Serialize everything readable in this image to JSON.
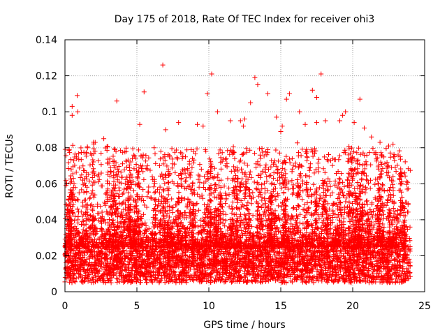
{
  "chart_data": {
    "type": "scatter",
    "title": "Day 175 of 2018, Rate Of TEC Index for receiver ohi3",
    "xlabel": "GPS time / hours",
    "ylabel": "ROTI / TECUs",
    "xlim": [
      0,
      25
    ],
    "ylim": [
      0,
      0.14
    ],
    "x_ticks": [
      "0",
      "5",
      "10",
      "15",
      "20",
      "25"
    ],
    "y_ticks": [
      "0",
      "0.02",
      "0.04",
      "0.06",
      "0.08",
      "0.1",
      "0.12",
      "0.14"
    ],
    "grid": true,
    "marker": "plus",
    "color": "#ff0000",
    "time_range": [
      0,
      24
    ],
    "baseline_range": [
      0.005,
      0.025
    ],
    "notable_points": [
      {
        "x": 0.3,
        "y": 0.079
      },
      {
        "x": 0.5,
        "y": 0.103
      },
      {
        "x": 0.5,
        "y": 0.098
      },
      {
        "x": 0.85,
        "y": 0.109
      },
      {
        "x": 0.9,
        "y": 0.1
      },
      {
        "x": 2.1,
        "y": 0.083
      },
      {
        "x": 2.7,
        "y": 0.085
      },
      {
        "x": 3.6,
        "y": 0.106
      },
      {
        "x": 5.2,
        "y": 0.093
      },
      {
        "x": 5.5,
        "y": 0.111
      },
      {
        "x": 6.8,
        "y": 0.126
      },
      {
        "x": 7.0,
        "y": 0.09
      },
      {
        "x": 7.9,
        "y": 0.094
      },
      {
        "x": 9.2,
        "y": 0.093
      },
      {
        "x": 9.6,
        "y": 0.092
      },
      {
        "x": 9.9,
        "y": 0.11
      },
      {
        "x": 10.2,
        "y": 0.121
      },
      {
        "x": 10.6,
        "y": 0.1
      },
      {
        "x": 11.5,
        "y": 0.095
      },
      {
        "x": 12.2,
        "y": 0.095
      },
      {
        "x": 12.4,
        "y": 0.092
      },
      {
        "x": 12.5,
        "y": 0.096
      },
      {
        "x": 12.9,
        "y": 0.105
      },
      {
        "x": 13.2,
        "y": 0.119
      },
      {
        "x": 13.4,
        "y": 0.115
      },
      {
        "x": 14.1,
        "y": 0.11
      },
      {
        "x": 14.7,
        "y": 0.097
      },
      {
        "x": 15.0,
        "y": 0.089
      },
      {
        "x": 15.1,
        "y": 0.092
      },
      {
        "x": 15.4,
        "y": 0.107
      },
      {
        "x": 15.6,
        "y": 0.11
      },
      {
        "x": 16.3,
        "y": 0.1
      },
      {
        "x": 16.7,
        "y": 0.093
      },
      {
        "x": 17.2,
        "y": 0.112
      },
      {
        "x": 17.5,
        "y": 0.108
      },
      {
        "x": 17.8,
        "y": 0.121
      },
      {
        "x": 17.5,
        "y": 0.094
      },
      {
        "x": 18.1,
        "y": 0.095
      },
      {
        "x": 19.1,
        "y": 0.095
      },
      {
        "x": 19.3,
        "y": 0.098
      },
      {
        "x": 19.5,
        "y": 0.1
      },
      {
        "x": 20.1,
        "y": 0.094
      },
      {
        "x": 20.5,
        "y": 0.107
      },
      {
        "x": 20.8,
        "y": 0.091
      },
      {
        "x": 21.3,
        "y": 0.086
      },
      {
        "x": 21.9,
        "y": 0.083
      },
      {
        "x": 22.5,
        "y": 0.081
      },
      {
        "x": 22.8,
        "y": 0.082
      },
      {
        "x": 23.3,
        "y": 0.075
      },
      {
        "x": 23.6,
        "y": 0.066
      }
    ]
  }
}
